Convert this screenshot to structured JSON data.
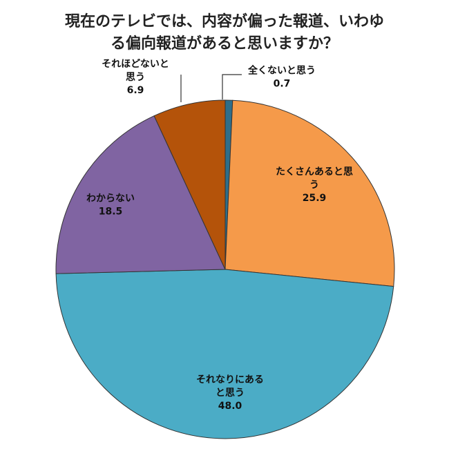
{
  "chart_data": {
    "type": "pie",
    "title_lines": [
      "現在のテレビでは、内容が偏った報道、いわゆ",
      "る偏向報道があると思いますか？"
    ],
    "slices": [
      {
        "label_lines": [
          "全くないと思う"
        ],
        "value": 0.7,
        "value_text": "0.7",
        "color": "#2e6e8a"
      },
      {
        "label_lines": [
          "たくさんあると思",
          "う"
        ],
        "value": 25.9,
        "value_text": "25.9",
        "color": "#f59a4a"
      },
      {
        "label_lines": [
          "それなりにある",
          "と思う"
        ],
        "value": 48.0,
        "value_text": "48.0",
        "color": "#4bacc6"
      },
      {
        "label_lines": [
          "わからない"
        ],
        "value": 18.5,
        "value_text": "18.5",
        "color": "#8064a2"
      },
      {
        "label_lines": [
          "それほどないと",
          "思う"
        ],
        "value": 6.9,
        "value_text": "6.9",
        "color": "#b4530a"
      }
    ],
    "start": "12 o'clock",
    "direction": "clockwise",
    "legend": "none"
  }
}
